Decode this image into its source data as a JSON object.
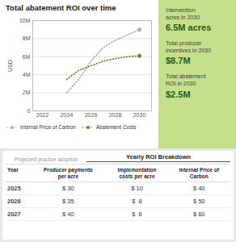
{
  "chart_data": {
    "type": "line",
    "title": "Total abatement ROI over time",
    "ylabel": "USD",
    "x": [
      2024,
      2025,
      2026,
      2027,
      2028,
      2029,
      2030
    ],
    "series": [
      {
        "name": "Internal Price of Carbon",
        "color": "#aaaaaa",
        "values": [
          2000000,
          3500000,
          5500000,
          7000000,
          7800000,
          8400000,
          9000000
        ]
      },
      {
        "name": "Abatement Costs",
        "color": "#5a8a20",
        "values": [
          3500000,
          4500000,
          5000000,
          5500000,
          5800000,
          6000000,
          6100000
        ]
      }
    ],
    "xlim": [
      2021.2,
      2031.0
    ],
    "xticks": [
      2022,
      2024,
      2026,
      2028,
      2030
    ],
    "ylim": [
      0,
      10000000
    ],
    "yticks": [
      0,
      {
        "value": 2000000,
        "label": "2M"
      },
      {
        "value": 4000000,
        "label": "4M"
      },
      {
        "value": 6000000,
        "label": "6M"
      },
      {
        "value": 8000000,
        "label": "8M"
      },
      {
        "value": 10000000,
        "label": "10M"
      }
    ],
    "grid": true,
    "legend": "lower left",
    "line_style": "dotted",
    "marker": "circle",
    "annotations": [
      "Intervention\nacres in 2030",
      "6.5M acres",
      "Total producer\nincentives in 2030",
      "$8.7M",
      "Total abatement\nROI in 2030",
      "$2.5M"
    ]
  },
  "table": {
    "tabs": [
      "Projected practice adoption",
      "Yearly ROI Breakdown"
    ],
    "columns": [
      "Year",
      "Producer payments\nper acre",
      "Implementation\ncosts per acre",
      "Internal Price of\nCarbon"
    ],
    "rows": [
      [
        "2025",
        "$ 30",
        "$ 10",
        "$ 40"
      ],
      [
        "2026",
        "$ 35",
        "$  8",
        "$ 50"
      ],
      [
        "2027",
        "$ 40",
        "$  6",
        "$ 60"
      ]
    ]
  }
}
